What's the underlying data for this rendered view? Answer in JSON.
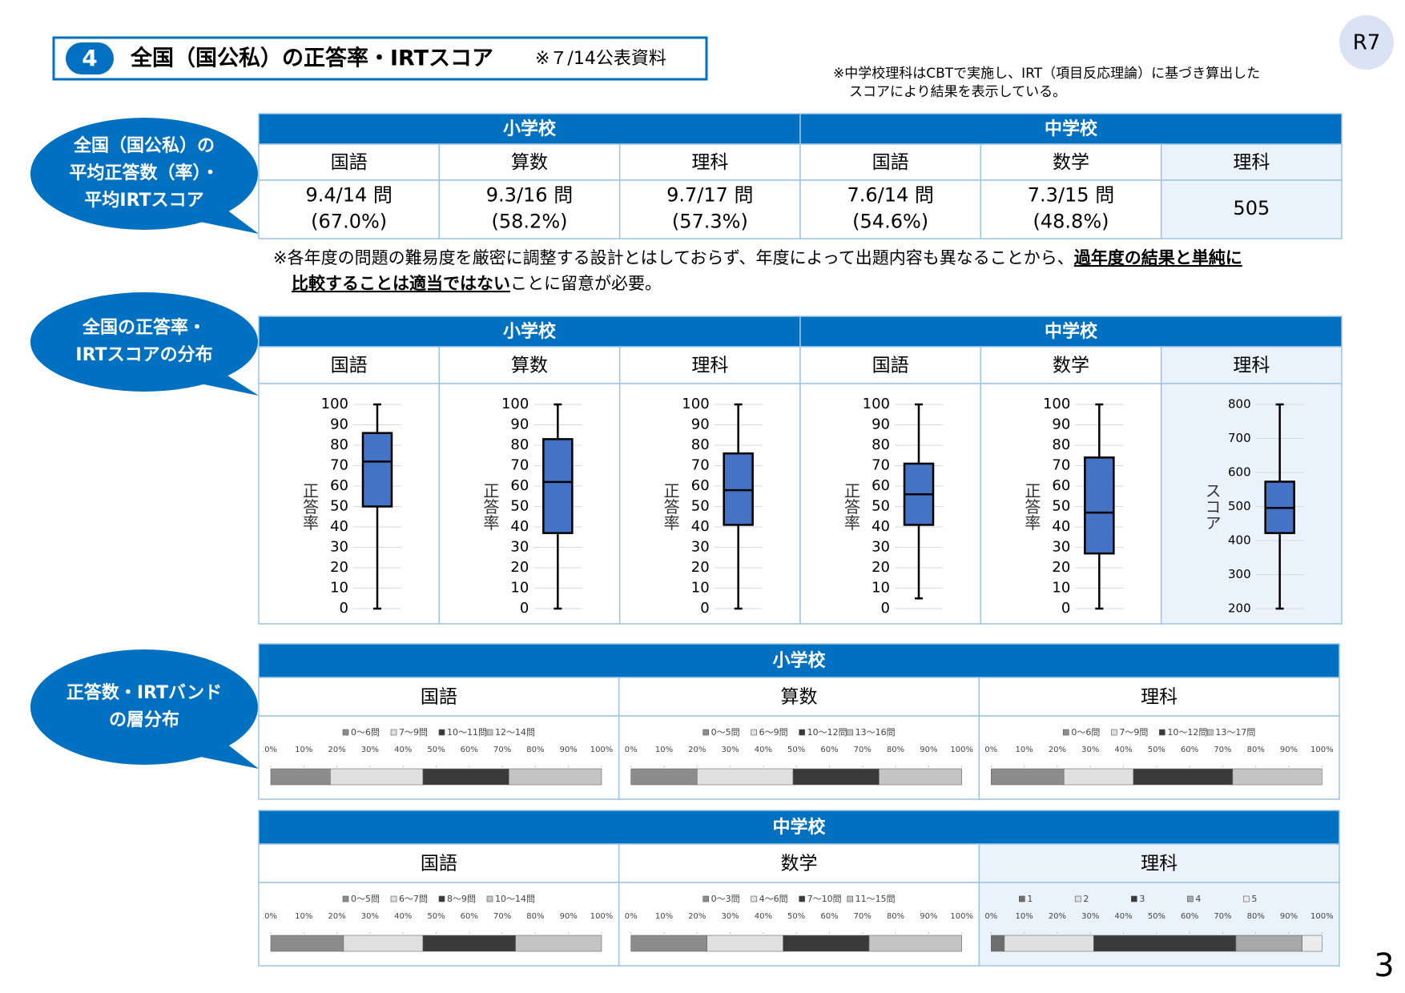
{
  "header": {
    "number": "4",
    "title": "全国（国公私）の正答率・IRTスコア",
    "source": "※７/14公表資料",
    "badge": "R7",
    "note": [
      "※中学校理科はCBTで実施し、IRT（項目反応理論）に基づき算出した",
      "スコアにより結果を表示している。"
    ]
  },
  "section_labels": [
    [
      "全国（国公私）の",
      "平均正答数（率）・",
      "平均IRTスコア"
    ],
    [
      "全国の正答率・",
      "IRTスコアの分布"
    ],
    [
      "正答数・IRTバンド",
      "の層分布"
    ]
  ],
  "schools": [
    "小学校",
    "中学校"
  ],
  "subjects": [
    [
      "国語",
      "算数",
      "理科"
    ],
    [
      "国語",
      "数学",
      "理科"
    ]
  ],
  "averages": [
    [
      [
        "9.4/14 問",
        "(67.0%)"
      ],
      [
        "9.3/16 問",
        "(58.2%)"
      ],
      [
        "9.7/17 問",
        "(57.3%)"
      ]
    ],
    [
      [
        "7.6/14 問",
        "(54.6%)"
      ],
      [
        "7.3/15 問",
        "(48.8%)"
      ],
      [
        505
      ]
    ]
  ],
  "caution": [
    "※各年度の問題の難易度を厳密に調整する設計とはしておらず、年度によって出題内容も異なることから、",
    "過年度の結果と単純に",
    "比較することは適当ではない",
    "ことに留意が必要。"
  ],
  "page_number": "3",
  "chart_data": [
    {
      "type": "box",
      "y_label": "正答率",
      "ylim": [
        0,
        100
      ],
      "yticks": [
        0,
        10,
        20,
        30,
        40,
        50,
        60,
        70,
        80,
        90,
        100
      ],
      "grid": true,
      "color": "#4472c4",
      "min": 0,
      "q1": 50,
      "median": 72,
      "q3": 86,
      "max": 100
    },
    {
      "type": "box",
      "y_label": "正答率",
      "ylim": [
        0,
        100
      ],
      "yticks": [
        0,
        10,
        20,
        30,
        40,
        50,
        60,
        70,
        80,
        90,
        100
      ],
      "grid": true,
      "color": "#4472c4",
      "min": 0,
      "q1": 37,
      "median": 62,
      "q3": 83,
      "max": 100
    },
    {
      "type": "box",
      "y_label": "正答率",
      "ylim": [
        0,
        100
      ],
      "yticks": [
        0,
        10,
        20,
        30,
        40,
        50,
        60,
        70,
        80,
        90,
        100
      ],
      "grid": true,
      "color": "#4472c4",
      "min": 0,
      "q1": 41,
      "median": 58,
      "q3": 76,
      "max": 100
    },
    {
      "type": "box",
      "y_label": "正答率",
      "ylim": [
        0,
        100
      ],
      "yticks": [
        0,
        10,
        20,
        30,
        40,
        50,
        60,
        70,
        80,
        90,
        100
      ],
      "grid": true,
      "color": "#4472c4",
      "min": 5,
      "q1": 41,
      "median": 56,
      "q3": 71,
      "max": 100
    },
    {
      "type": "box",
      "y_label": "正答率",
      "ylim": [
        0,
        100
      ],
      "yticks": [
        0,
        10,
        20,
        30,
        40,
        50,
        60,
        70,
        80,
        90,
        100
      ],
      "grid": true,
      "color": "#4472c4",
      "min": 0,
      "q1": 27,
      "median": 47,
      "q3": 74,
      "max": 100
    },
    {
      "type": "box",
      "y_label": "スコア",
      "ylim": [
        200,
        800
      ],
      "yticks": [
        200,
        300,
        400,
        500,
        600,
        700,
        800
      ],
      "grid": true,
      "color": "#4472c4",
      "min": 200,
      "q1": 422,
      "median": 496,
      "q3": 573,
      "max": 800
    },
    {
      "type": "stacked_bar",
      "xlim": [
        0,
        100
      ],
      "xticks": [
        {
          "value": 0,
          "label": "0%"
        },
        {
          "value": 10,
          "label": "10%"
        },
        {
          "value": 20,
          "label": "20%"
        },
        {
          "value": 30,
          "label": "30%"
        },
        {
          "value": 40,
          "label": "40%"
        },
        {
          "value": 50,
          "label": "50%"
        },
        {
          "value": 60,
          "label": "60%"
        },
        {
          "value": 70,
          "label": "70%"
        },
        {
          "value": 80,
          "label": "80%"
        },
        {
          "value": 90,
          "label": "90%"
        },
        {
          "value": 100,
          "label": "100%"
        }
      ],
      "series": [
        {
          "name": "0～6問",
          "color": "#8c8c8c",
          "values": [
            18
          ]
        },
        {
          "name": "7～9問",
          "color": "#e0e0e0",
          "values": [
            28
          ]
        },
        {
          "name": "10～11問",
          "color": "#3a3a3a",
          "values": [
            26
          ]
        },
        {
          "name": "12～14問",
          "color": "#c4c4c4",
          "values": [
            28
          ]
        }
      ]
    },
    {
      "type": "stacked_bar",
      "xlim": [
        0,
        100
      ],
      "xticks": [
        {
          "value": 0,
          "label": "0%"
        },
        {
          "value": 10,
          "label": "10%"
        },
        {
          "value": 20,
          "label": "20%"
        },
        {
          "value": 30,
          "label": "30%"
        },
        {
          "value": 40,
          "label": "40%"
        },
        {
          "value": 50,
          "label": "50%"
        },
        {
          "value": 60,
          "label": "60%"
        },
        {
          "value": 70,
          "label": "70%"
        },
        {
          "value": 80,
          "label": "80%"
        },
        {
          "value": 90,
          "label": "90%"
        },
        {
          "value": 100,
          "label": "100%"
        }
      ],
      "series": [
        {
          "name": "0～5問",
          "color": "#8c8c8c",
          "values": [
            20
          ]
        },
        {
          "name": "6～9問",
          "color": "#e0e0e0",
          "values": [
            29
          ]
        },
        {
          "name": "10～12問",
          "color": "#3a3a3a",
          "values": [
            26
          ]
        },
        {
          "name": "13～16問",
          "color": "#c4c4c4",
          "values": [
            25
          ]
        }
      ]
    },
    {
      "type": "stacked_bar",
      "xlim": [
        0,
        100
      ],
      "xticks": [
        {
          "value": 0,
          "label": "0%"
        },
        {
          "value": 10,
          "label": "10%"
        },
        {
          "value": 20,
          "label": "20%"
        },
        {
          "value": 30,
          "label": "30%"
        },
        {
          "value": 40,
          "label": "40%"
        },
        {
          "value": 50,
          "label": "50%"
        },
        {
          "value": 60,
          "label": "60%"
        },
        {
          "value": 70,
          "label": "70%"
        },
        {
          "value": 80,
          "label": "80%"
        },
        {
          "value": 90,
          "label": "90%"
        },
        {
          "value": 100,
          "label": "100%"
        }
      ],
      "series": [
        {
          "name": "0～6問",
          "color": "#8c8c8c",
          "values": [
            22
          ]
        },
        {
          "name": "7～9問",
          "color": "#e0e0e0",
          "values": [
            21
          ]
        },
        {
          "name": "10～12問",
          "color": "#3a3a3a",
          "values": [
            30
          ]
        },
        {
          "name": "13～17問",
          "color": "#c4c4c4",
          "values": [
            27
          ]
        }
      ]
    },
    {
      "type": "stacked_bar",
      "xlim": [
        0,
        100
      ],
      "xticks": [
        {
          "value": 0,
          "label": "0%"
        },
        {
          "value": 10,
          "label": "10%"
        },
        {
          "value": 20,
          "label": "20%"
        },
        {
          "value": 30,
          "label": "30%"
        },
        {
          "value": 40,
          "label": "40%"
        },
        {
          "value": 50,
          "label": "50%"
        },
        {
          "value": 60,
          "label": "60%"
        },
        {
          "value": 70,
          "label": "70%"
        },
        {
          "value": 80,
          "label": "80%"
        },
        {
          "value": 90,
          "label": "90%"
        },
        {
          "value": 100,
          "label": "100%"
        }
      ],
      "series": [
        {
          "name": "0～5問",
          "color": "#8c8c8c",
          "values": [
            22
          ]
        },
        {
          "name": "6～7問",
          "color": "#e0e0e0",
          "values": [
            24
          ]
        },
        {
          "name": "8～9問",
          "color": "#3a3a3a",
          "values": [
            28
          ]
        },
        {
          "name": "10～14問",
          "color": "#c4c4c4",
          "values": [
            26
          ]
        }
      ]
    },
    {
      "type": "stacked_bar",
      "xlim": [
        0,
        100
      ],
      "xticks": [
        {
          "value": 0,
          "label": "0%"
        },
        {
          "value": 10,
          "label": "10%"
        },
        {
          "value": 20,
          "label": "20%"
        },
        {
          "value": 30,
          "label": "30%"
        },
        {
          "value": 40,
          "label": "40%"
        },
        {
          "value": 50,
          "label": "50%"
        },
        {
          "value": 60,
          "label": "60%"
        },
        {
          "value": 70,
          "label": "70%"
        },
        {
          "value": 80,
          "label": "80%"
        },
        {
          "value": 90,
          "label": "90%"
        },
        {
          "value": 100,
          "label": "100%"
        }
      ],
      "series": [
        {
          "name": "0～3問",
          "color": "#8c8c8c",
          "values": [
            23
          ]
        },
        {
          "name": "4～6問",
          "color": "#e0e0e0",
          "values": [
            23
          ]
        },
        {
          "name": "7～10問",
          "color": "#3a3a3a",
          "values": [
            26
          ]
        },
        {
          "name": "11～15問",
          "color": "#c4c4c4",
          "values": [
            28
          ]
        }
      ]
    },
    {
      "type": "stacked_bar",
      "xlim": [
        0,
        100
      ],
      "xticks": [
        {
          "value": 0,
          "label": "0%"
        },
        {
          "value": 10,
          "label": "10%"
        },
        {
          "value": 20,
          "label": "20%"
        },
        {
          "value": 30,
          "label": "30%"
        },
        {
          "value": 40,
          "label": "40%"
        },
        {
          "value": 50,
          "label": "50%"
        },
        {
          "value": 60,
          "label": "60%"
        },
        {
          "value": 70,
          "label": "70%"
        },
        {
          "value": 80,
          "label": "80%"
        },
        {
          "value": 90,
          "label": "90%"
        },
        {
          "value": 100,
          "label": "100%"
        }
      ],
      "series": [
        {
          "name": "1",
          "color": "#6e6e6e",
          "values": [
            4
          ]
        },
        {
          "name": "2",
          "color": "#e0e0e0",
          "values": [
            27
          ]
        },
        {
          "name": "3",
          "color": "#3a3a3a",
          "values": [
            43
          ]
        },
        {
          "name": "4",
          "color": "#a8a8a8",
          "values": [
            20
          ]
        },
        {
          "name": "5",
          "color": "#ececec",
          "values": [
            6
          ]
        }
      ]
    }
  ]
}
